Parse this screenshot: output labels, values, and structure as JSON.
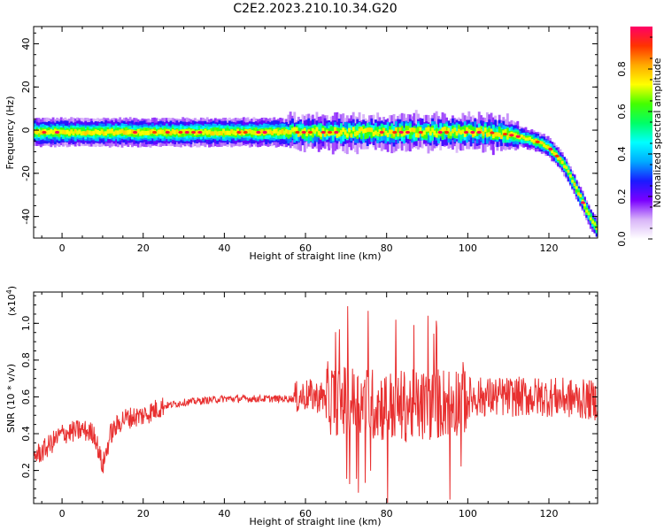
{
  "chart_data": [
    {
      "type": "heatmap",
      "title": "C2E2.2023.210.10.34.G20",
      "xlabel": "Height of straight line (km)",
      "ylabel": "Frequency (Hz)",
      "xlim": [
        -7,
        132
      ],
      "ylim": [
        -50,
        48
      ],
      "xticks": [
        0,
        20,
        40,
        60,
        80,
        100,
        120
      ],
      "yticks": [
        -40,
        -20,
        0,
        20,
        40
      ],
      "colorbar": {
        "label": "Normalized spectral amplitude",
        "range": [
          0,
          1
        ],
        "ticks": [
          "0.0",
          "0.2",
          "0.4",
          "0.6",
          "0.8"
        ],
        "colormap": [
          "#ffffff",
          "#d8b4f8",
          "#7a00ff",
          "#1a1aff",
          "#00aaff",
          "#00ffff",
          "#00ff66",
          "#44ff00",
          "#ffff00",
          "#ffaa00",
          "#ff3300",
          "#ff0066"
        ]
      },
      "ridge": {
        "x": [
          -7,
          0,
          20,
          40,
          60,
          80,
          90,
          100,
          105,
          110,
          115,
          118,
          120,
          122,
          124,
          126,
          128,
          130,
          132
        ],
        "y": [
          -1,
          -1,
          -1,
          -1,
          -1,
          -1,
          -1,
          -1,
          -1,
          -2,
          -4,
          -6,
          -8,
          -12,
          -17,
          -24,
          -32,
          -40,
          -46
        ]
      }
    },
    {
      "type": "line",
      "title": "",
      "xlabel": "Height of straight line (km)",
      "ylabel": "SNR (10 * v/v)",
      "scale_label": "(x10",
      "scale_exp": "4",
      "scale_close": ")",
      "xlim": [
        -7,
        132
      ],
      "ylim": [
        0.02,
        1.17
      ],
      "xticks": [
        0,
        20,
        40,
        60,
        80,
        100,
        120
      ],
      "yticks": [
        0.2,
        0.4,
        0.6,
        0.8,
        1.0
      ],
      "ytick_labels": [
        "0.2",
        "0.4",
        "0.6",
        "0.8",
        "1.0"
      ],
      "color": "#e83030",
      "trend": {
        "x": [
          -7,
          -5,
          0,
          5,
          8,
          10,
          12,
          15,
          20,
          25,
          30,
          40,
          50,
          57,
          60,
          70,
          80,
          90,
          100,
          110,
          120,
          132
        ],
        "y": [
          0.28,
          0.3,
          0.4,
          0.42,
          0.4,
          0.22,
          0.4,
          0.48,
          0.5,
          0.55,
          0.57,
          0.59,
          0.59,
          0.59,
          0.61,
          0.58,
          0.55,
          0.55,
          0.6,
          0.6,
          0.6,
          0.58
        ]
      }
    }
  ]
}
